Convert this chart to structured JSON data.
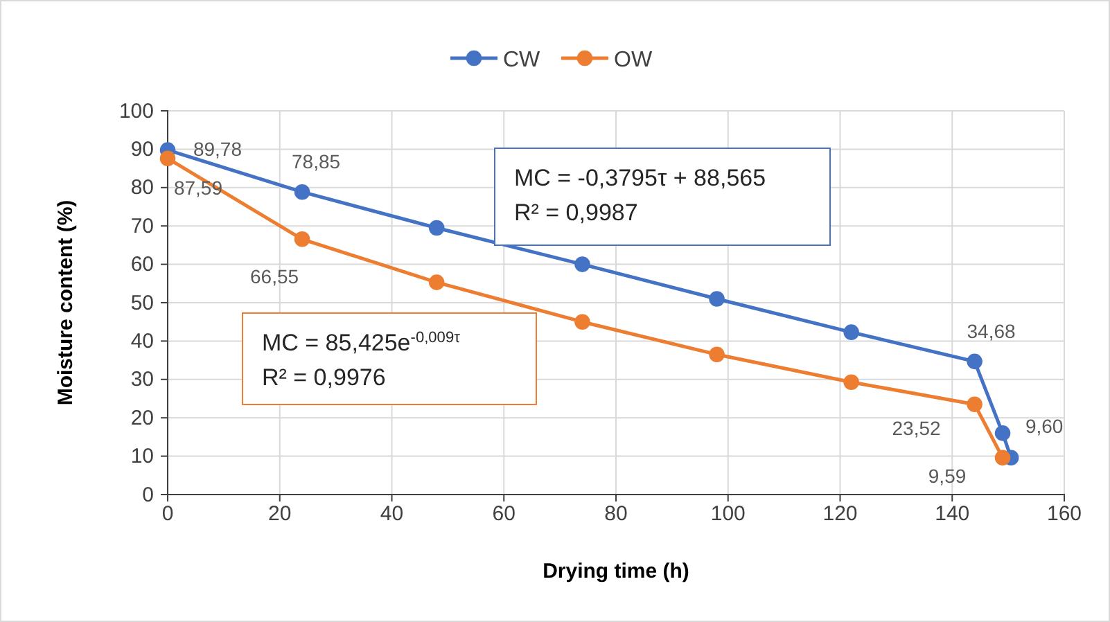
{
  "chart_data": {
    "type": "line",
    "xlabel": "Drying time (h)",
    "ylabel": "Moisture content (%)",
    "xlim": [
      0,
      160
    ],
    "xticks": [
      0,
      20,
      40,
      60,
      80,
      100,
      120,
      140,
      160
    ],
    "ylim": [
      0,
      100
    ],
    "yticks": [
      0,
      10,
      20,
      30,
      40,
      50,
      60,
      70,
      80,
      90,
      100
    ],
    "grid": true,
    "legend": "top",
    "marker": "circle",
    "series": [
      {
        "name": "CW",
        "color": "#4472c4",
        "x": [
          0,
          24,
          48,
          74,
          98,
          122,
          144,
          149,
          150.5
        ],
        "values": [
          89.78,
          78.85,
          69.5,
          60,
          51,
          42.3,
          34.68,
          16,
          9.6
        ],
        "value_labels": [
          "89,78",
          "78,85",
          null,
          null,
          null,
          null,
          "34,68",
          null,
          "9,60"
        ]
      },
      {
        "name": "OW",
        "color": "#ed7d31",
        "x": [
          0,
          24,
          48,
          74,
          98,
          122,
          144,
          149
        ],
        "values": [
          87.59,
          66.55,
          55.3,
          45,
          36.5,
          29.3,
          23.52,
          9.59
        ],
        "value_labels": [
          "87,59",
          "66,55",
          null,
          null,
          null,
          null,
          "23,52",
          "9,59"
        ]
      }
    ],
    "annotations": [
      "MC = -0,3795τ + 88,565\nR² = 0,9987",
      "MC = 85,425e$^{-0,009τ}$\nR² = 0,9976"
    ]
  }
}
